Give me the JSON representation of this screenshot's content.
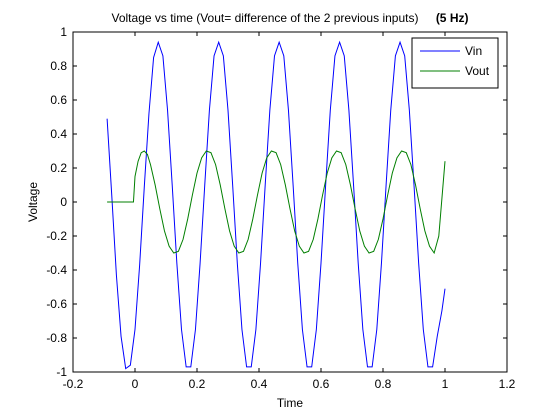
{
  "chart_data": {
    "type": "line",
    "title": "Voltage vs time (Vout= difference of the 2 previous inputs)",
    "title_suffix": "(5 Hz)",
    "xlabel": "Time",
    "ylabel": "Voltage",
    "xlim": [
      -0.2,
      1.2
    ],
    "ylim": [
      -1,
      1
    ],
    "xticks": [
      -0.2,
      0,
      0.2,
      0.4,
      0.6,
      0.8,
      1,
      1.2
    ],
    "xtick_labels": [
      "-0.2",
      "0",
      "0.2",
      "0.4",
      "0.6",
      "0.8",
      "1",
      "1.2"
    ],
    "yticks": [
      -1,
      -0.8,
      -0.6,
      -0.4,
      -0.2,
      0,
      0.2,
      0.4,
      0.6,
      0.8,
      1
    ],
    "ytick_labels": [
      "-1",
      "-0.8",
      "-0.6",
      "-0.4",
      "-0.2",
      "0",
      "0.2",
      "0.4",
      "0.6",
      "0.8",
      "1"
    ],
    "grid": false,
    "legend": "top-right",
    "series": [
      {
        "name": "Vin",
        "color": "#0000ff",
        "x": [
          -0.09,
          -0.075,
          -0.06,
          -0.045,
          -0.03,
          -0.015,
          0,
          0.015,
          0.03,
          0.045,
          0.06,
          0.075,
          0.09,
          0.105,
          0.12,
          0.135,
          0.15,
          0.165,
          0.18,
          0.195,
          0.21,
          0.225,
          0.24,
          0.255,
          0.27,
          0.285,
          0.3,
          0.315,
          0.33,
          0.345,
          0.36,
          0.375,
          0.39,
          0.405,
          0.42,
          0.435,
          0.45,
          0.465,
          0.48,
          0.495,
          0.51,
          0.525,
          0.54,
          0.555,
          0.57,
          0.585,
          0.6,
          0.615,
          0.63,
          0.645,
          0.66,
          0.675,
          0.69,
          0.705,
          0.72,
          0.735,
          0.75,
          0.765,
          0.78,
          0.795,
          0.81,
          0.825,
          0.84,
          0.855,
          0.87,
          0.885,
          0.9,
          0.915,
          0.93,
          0.945,
          0.96,
          0.975,
          0.99,
          1.0
        ],
        "y": [
          0.49,
          0.04,
          -0.43,
          -0.79,
          -0.98,
          -0.96,
          -0.75,
          -0.37,
          0.09,
          0.52,
          0.85,
          0.94,
          0.86,
          0.54,
          0.1,
          -0.36,
          -0.75,
          -0.97,
          -0.97,
          -0.75,
          -0.36,
          0.1,
          0.54,
          0.86,
          0.94,
          0.86,
          0.54,
          0.1,
          -0.36,
          -0.75,
          -0.97,
          -0.97,
          -0.75,
          -0.36,
          0.1,
          0.54,
          0.86,
          0.94,
          0.86,
          0.54,
          0.1,
          -0.36,
          -0.75,
          -0.97,
          -0.97,
          -0.75,
          -0.36,
          0.1,
          0.54,
          0.86,
          0.94,
          0.86,
          0.54,
          0.1,
          -0.36,
          -0.75,
          -0.97,
          -0.97,
          -0.75,
          -0.36,
          0.1,
          0.54,
          0.86,
          0.94,
          0.86,
          0.54,
          0.1,
          -0.36,
          -0.75,
          -0.97,
          -0.97,
          -0.79,
          -0.64,
          -0.51
        ]
      },
      {
        "name": "Vout",
        "color": "#007f00",
        "x": [
          -0.09,
          -0.06,
          -0.03,
          -0.005,
          0,
          0.01,
          0.02,
          0.03,
          0.04,
          0.05,
          0.065,
          0.08,
          0.095,
          0.11,
          0.125,
          0.14,
          0.155,
          0.17,
          0.185,
          0.2,
          0.215,
          0.23,
          0.245,
          0.26,
          0.275,
          0.29,
          0.305,
          0.32,
          0.335,
          0.35,
          0.365,
          0.38,
          0.395,
          0.41,
          0.425,
          0.44,
          0.455,
          0.47,
          0.485,
          0.5,
          0.515,
          0.53,
          0.545,
          0.56,
          0.575,
          0.59,
          0.605,
          0.62,
          0.635,
          0.65,
          0.665,
          0.68,
          0.695,
          0.71,
          0.725,
          0.74,
          0.755,
          0.77,
          0.785,
          0.8,
          0.815,
          0.83,
          0.845,
          0.86,
          0.875,
          0.89,
          0.905,
          0.92,
          0.935,
          0.95,
          0.965,
          0.98,
          1.0
        ],
        "y": [
          0,
          0,
          0,
          0,
          0.15,
          0.24,
          0.29,
          0.3,
          0.28,
          0.22,
          0.1,
          -0.04,
          -0.17,
          -0.26,
          -0.3,
          -0.29,
          -0.22,
          -0.1,
          0.04,
          0.17,
          0.26,
          0.3,
          0.29,
          0.22,
          0.1,
          -0.04,
          -0.17,
          -0.26,
          -0.3,
          -0.29,
          -0.22,
          -0.1,
          0.04,
          0.17,
          0.26,
          0.3,
          0.29,
          0.22,
          0.1,
          -0.04,
          -0.17,
          -0.26,
          -0.3,
          -0.29,
          -0.22,
          -0.1,
          0.04,
          0.17,
          0.26,
          0.3,
          0.29,
          0.22,
          0.1,
          -0.04,
          -0.17,
          -0.26,
          -0.3,
          -0.29,
          -0.22,
          -0.1,
          0.04,
          0.17,
          0.26,
          0.3,
          0.29,
          0.22,
          0.1,
          -0.04,
          -0.17,
          -0.26,
          -0.3,
          -0.2,
          0.24
        ]
      }
    ]
  }
}
